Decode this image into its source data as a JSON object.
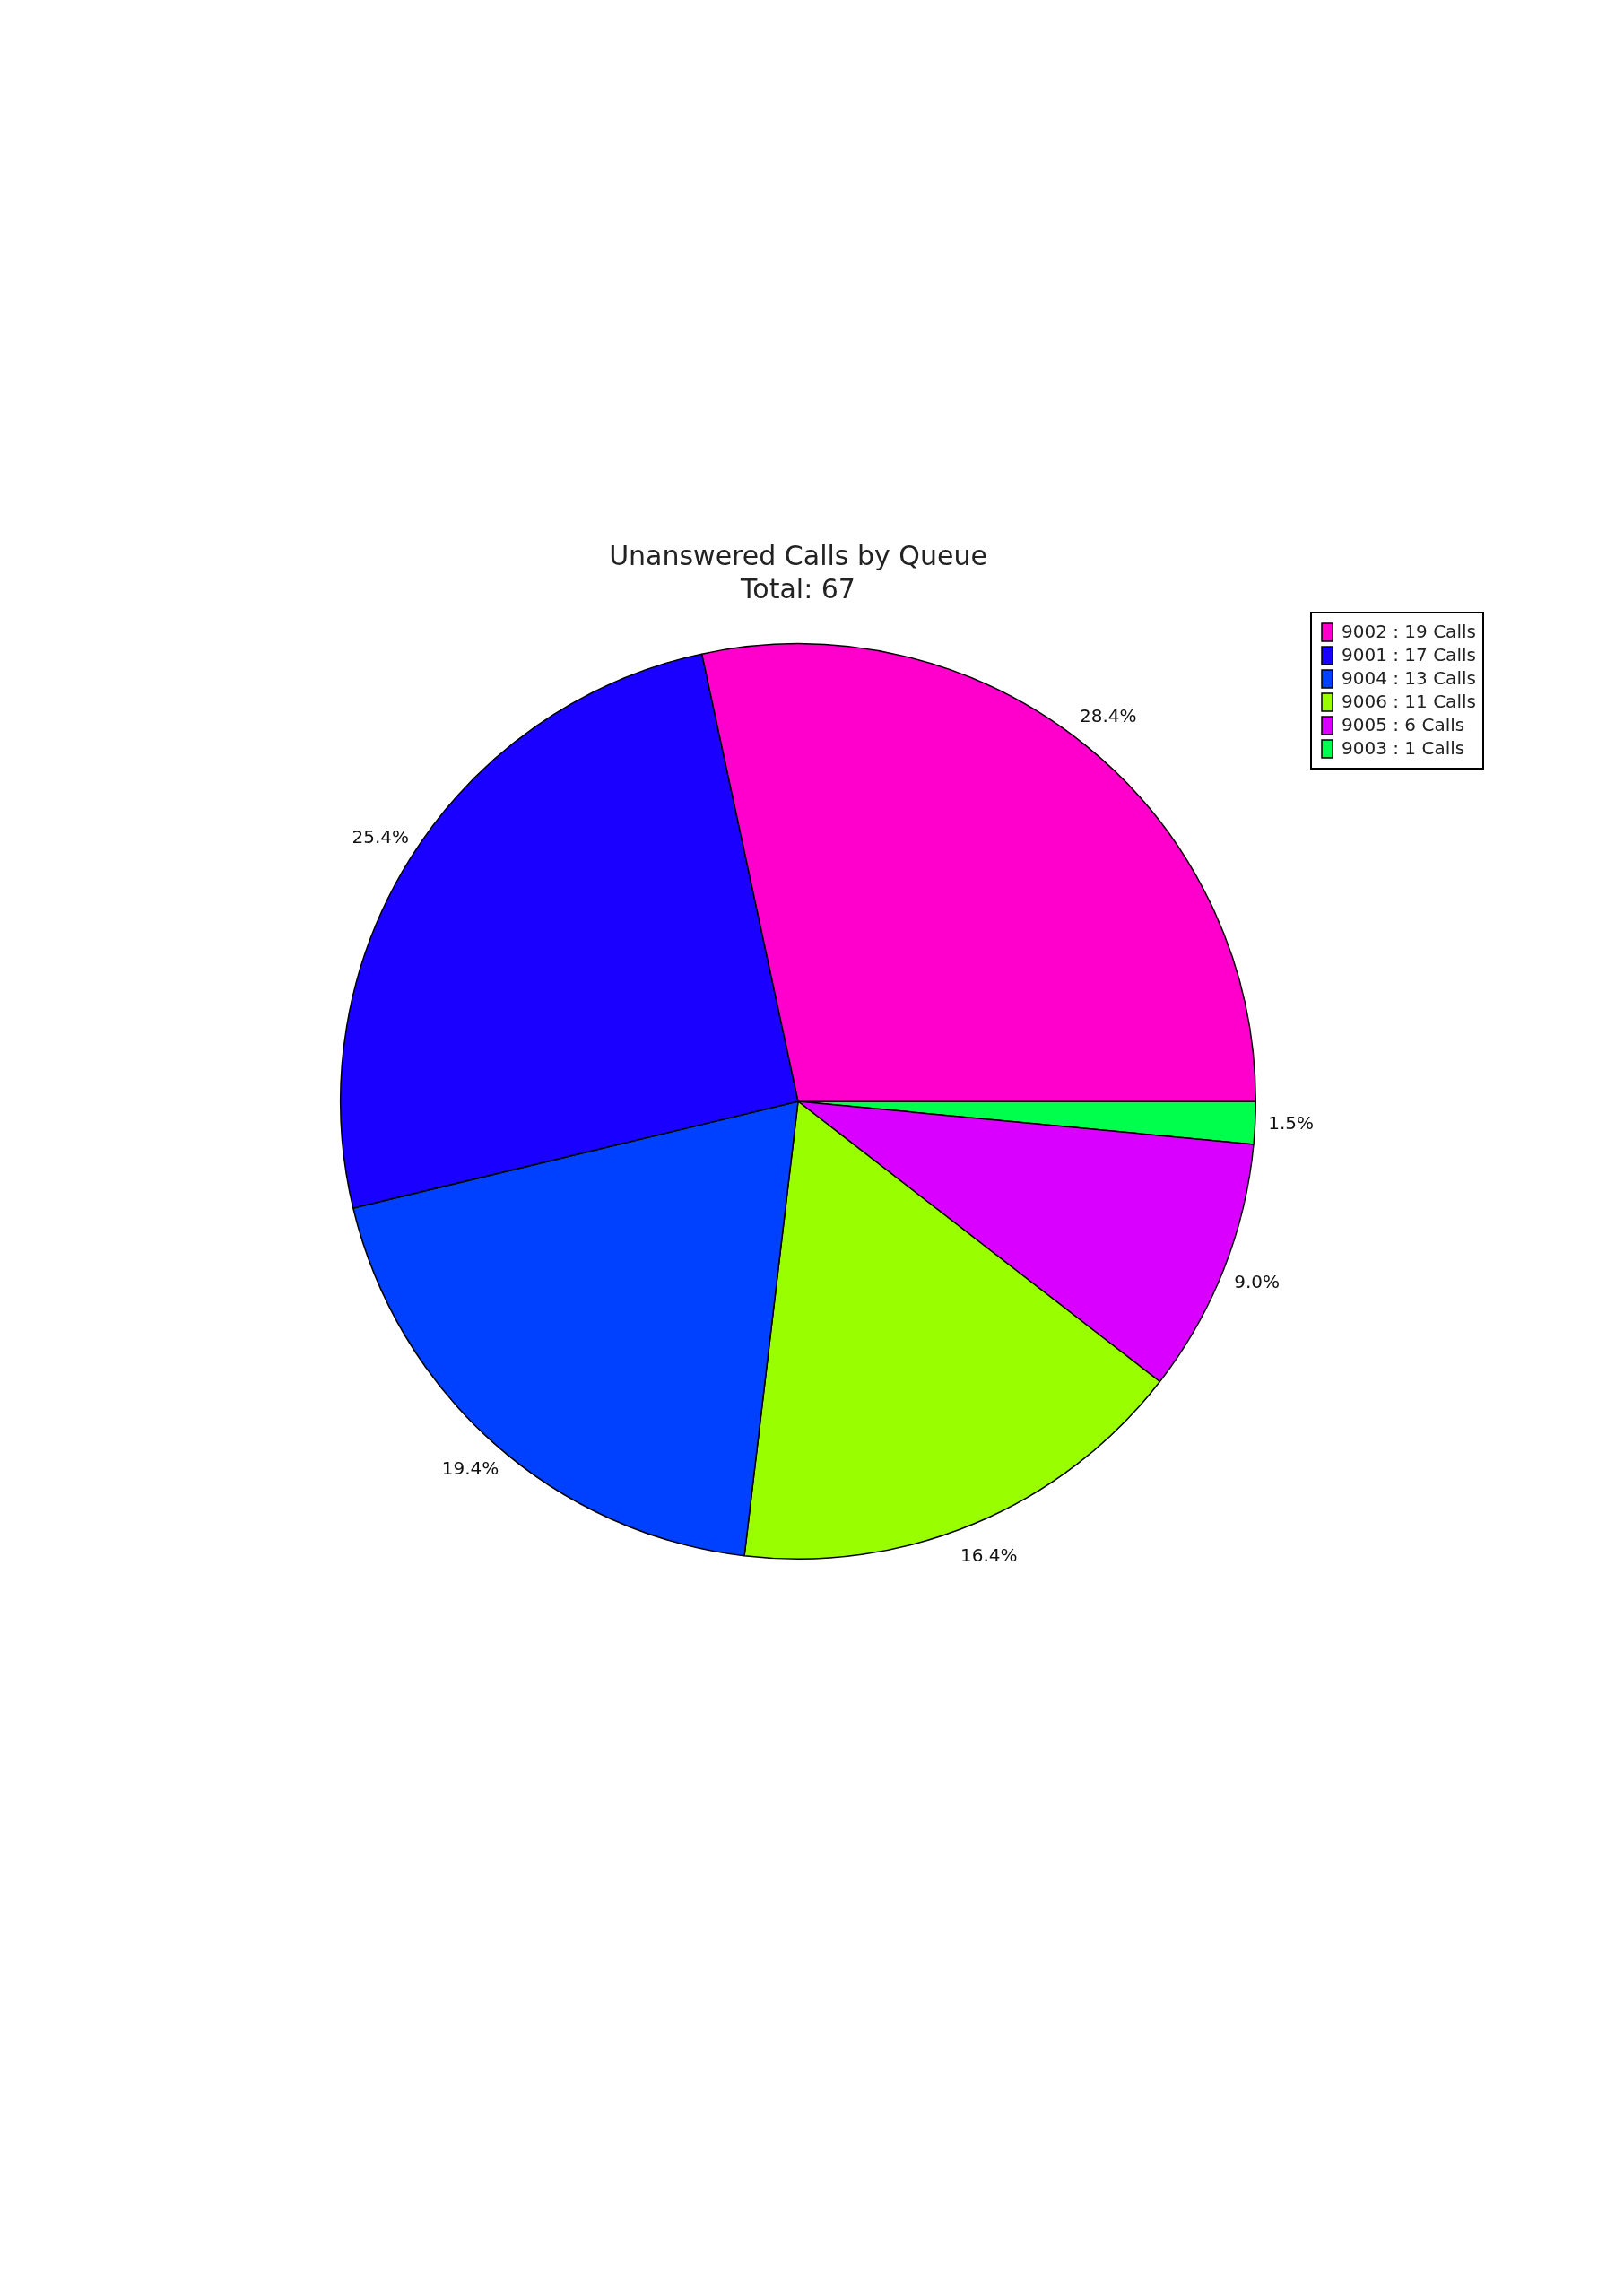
{
  "chart_data": {
    "type": "pie",
    "title": "Unanswered Calls by Queue",
    "subtitle": "Total: 67",
    "categories": [
      "9002 : 19 Calls",
      "9001 : 17 Calls",
      "9004 : 13 Calls",
      "9006 : 11 Calls",
      "9005 : 6 Calls",
      "9003 : 1 Calls"
    ],
    "values": [
      28.4,
      25.4,
      19.4,
      16.4,
      9.0,
      1.5
    ],
    "colors": [
      "#ff00cc",
      "#1a00ff",
      "#0040ff",
      "#99ff00",
      "#d900ff",
      "#00ff4d"
    ],
    "value_labels": [
      "28.4%",
      "25.4%",
      "19.4%",
      "16.4%",
      "9.0%",
      "1.5%"
    ],
    "legend": "top right"
  }
}
